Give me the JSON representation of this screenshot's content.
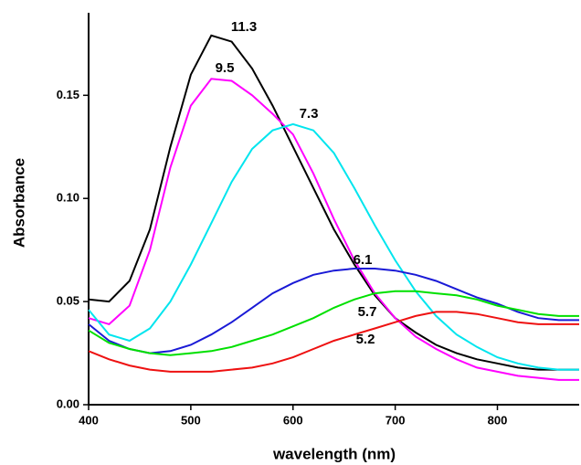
{
  "chart_data": {
    "type": "line",
    "x_label": "wavelength (nm)",
    "y_label": "Absorbance",
    "x": [
      400,
      420,
      440,
      460,
      480,
      500,
      520,
      540,
      560,
      580,
      600,
      620,
      640,
      660,
      680,
      700,
      720,
      740,
      760,
      780,
      800,
      820,
      840,
      860,
      880
    ],
    "series": [
      {
        "name": "11.3",
        "color": "#000000",
        "values": [
          0.051,
          0.05,
          0.06,
          0.085,
          0.125,
          0.16,
          0.179,
          0.176,
          0.163,
          0.145,
          0.125,
          0.105,
          0.085,
          0.068,
          0.053,
          0.042,
          0.035,
          0.029,
          0.025,
          0.022,
          0.02,
          0.018,
          0.017,
          0.017,
          0.017
        ]
      },
      {
        "name": "9.5",
        "color": "#ff00ff",
        "values": [
          0.042,
          0.039,
          0.048,
          0.075,
          0.115,
          0.145,
          0.158,
          0.157,
          0.15,
          0.141,
          0.131,
          0.112,
          0.09,
          0.07,
          0.054,
          0.042,
          0.033,
          0.027,
          0.022,
          0.018,
          0.016,
          0.014,
          0.013,
          0.012,
          0.012
        ]
      },
      {
        "name": "7.3",
        "color": "#00e5ee",
        "values": [
          0.046,
          0.034,
          0.031,
          0.037,
          0.05,
          0.068,
          0.088,
          0.108,
          0.124,
          0.133,
          0.136,
          0.133,
          0.122,
          0.105,
          0.087,
          0.07,
          0.055,
          0.043,
          0.034,
          0.028,
          0.023,
          0.02,
          0.018,
          0.017,
          0.017
        ]
      },
      {
        "name": "6.1",
        "color": "#1a1ad6",
        "values": [
          0.039,
          0.031,
          0.027,
          0.025,
          0.026,
          0.029,
          0.034,
          0.04,
          0.047,
          0.054,
          0.059,
          0.063,
          0.065,
          0.066,
          0.066,
          0.065,
          0.063,
          0.06,
          0.056,
          0.052,
          0.049,
          0.045,
          0.042,
          0.041,
          0.041
        ]
      },
      {
        "name": "5.7",
        "color": "#00e000",
        "values": [
          0.036,
          0.03,
          0.027,
          0.025,
          0.024,
          0.025,
          0.026,
          0.028,
          0.031,
          0.034,
          0.038,
          0.042,
          0.047,
          0.051,
          0.054,
          0.055,
          0.055,
          0.054,
          0.053,
          0.051,
          0.048,
          0.046,
          0.044,
          0.043,
          0.043
        ]
      },
      {
        "name": "5.2",
        "color": "#ee1111",
        "values": [
          0.026,
          0.022,
          0.019,
          0.017,
          0.016,
          0.016,
          0.016,
          0.017,
          0.018,
          0.02,
          0.023,
          0.027,
          0.031,
          0.034,
          0.037,
          0.04,
          0.043,
          0.045,
          0.045,
          0.044,
          0.042,
          0.04,
          0.039,
          0.039,
          0.039
        ]
      }
    ],
    "xlim": [
      400,
      880
    ],
    "xticks": [
      400,
      500,
      600,
      700,
      800
    ],
    "ylim": [
      0,
      0.19
    ],
    "yticks": [
      {
        "value": 0,
        "label": "0.00"
      },
      {
        "value": 0.05,
        "label": "0.05"
      },
      {
        "value": 0.1,
        "label": "0.10"
      },
      {
        "value": 0.15,
        "label": "0.15"
      }
    ]
  }
}
